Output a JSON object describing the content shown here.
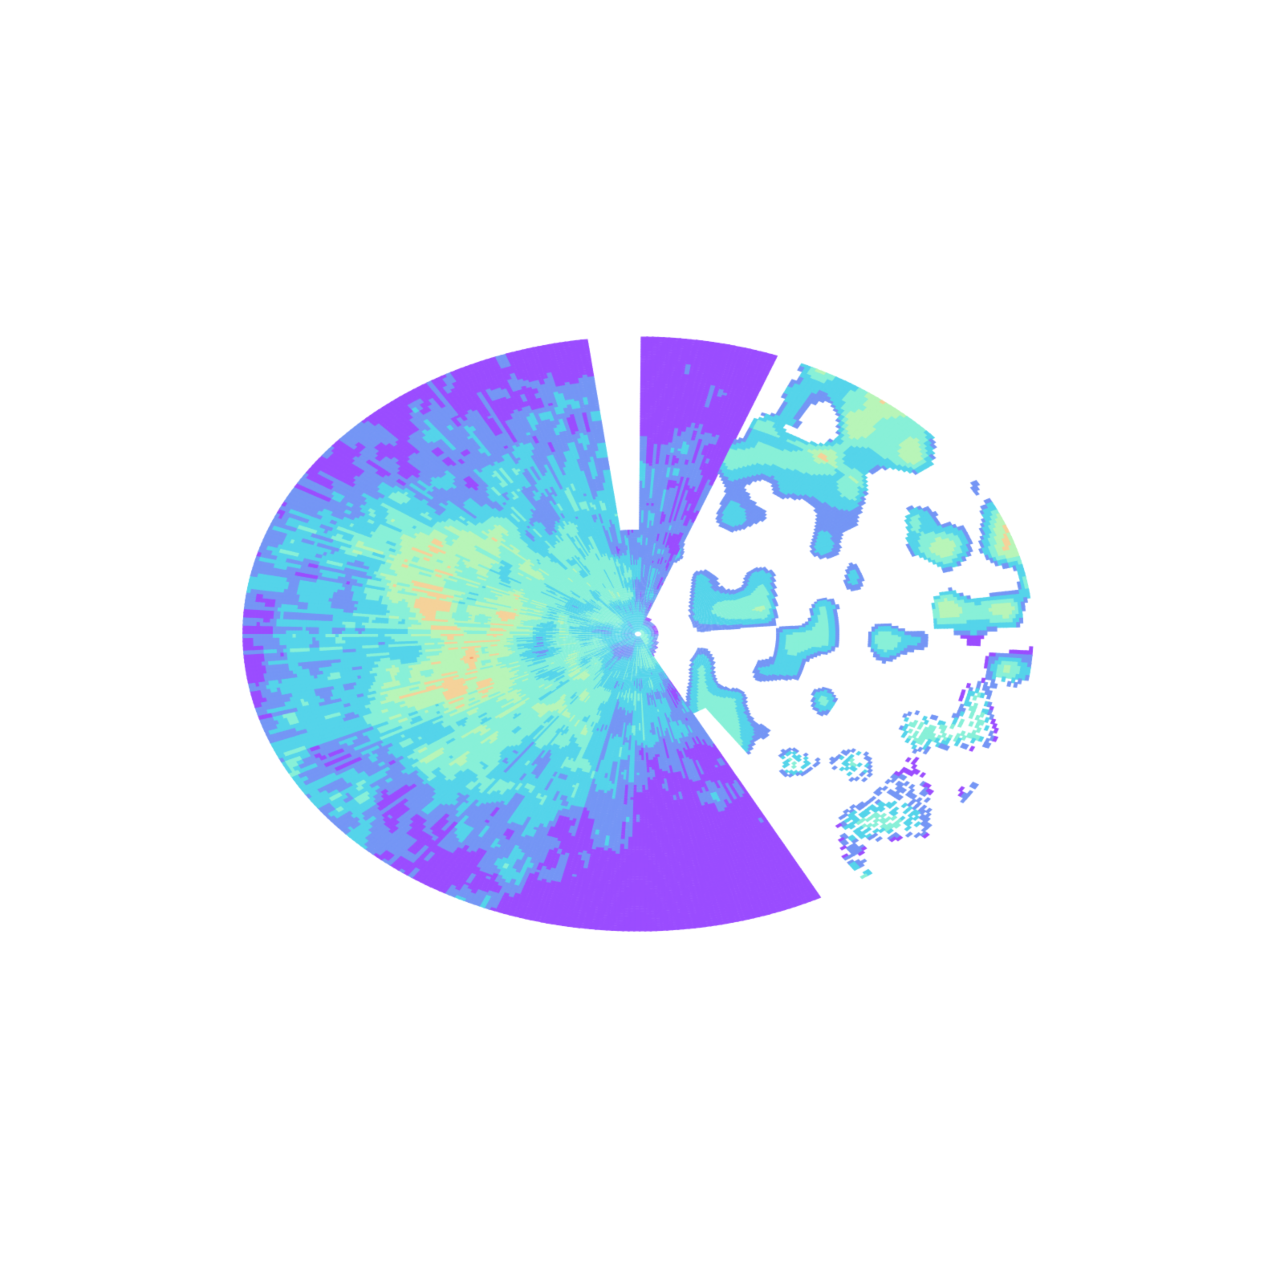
{
  "radar": {
    "palette": [
      "#9b4dff",
      "#7596f5",
      "#55d4ea",
      "#88f0d8",
      "#b8f5b8",
      "#f5d29a",
      "#f9a070",
      "#f26a50"
    ],
    "background": "#ffffff"
  }
}
